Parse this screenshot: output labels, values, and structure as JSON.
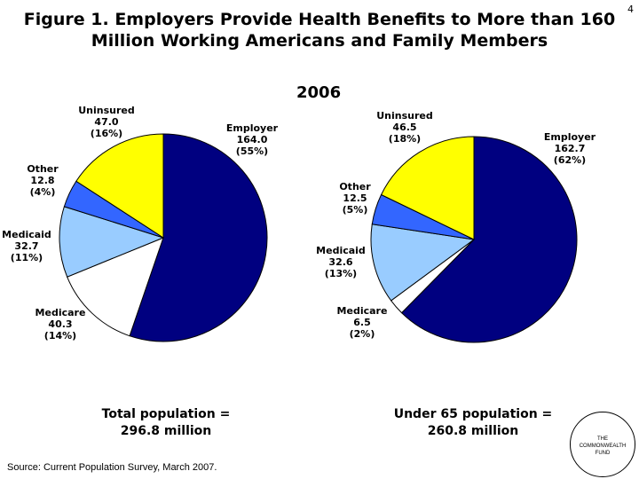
{
  "title": {
    "line1": "Figure 1. Employers Provide Health Benefits to More than 160",
    "line2": "Million Working Americans and Family Members"
  },
  "page_number": "4",
  "year_label": "2006",
  "chart_data": [
    {
      "type": "pie",
      "title": "2006",
      "caption_line1": "Total population =",
      "caption_line2": "296.8 million",
      "slices": [
        {
          "name": "Employer",
          "value": 164.0,
          "value_label": "164.0",
          "pct": "(55%)",
          "color": "#000080"
        },
        {
          "name": "Medicare",
          "value": 40.3,
          "value_label": "40.3",
          "pct": "(14%)",
          "color": "#ffffff"
        },
        {
          "name": "Medicaid",
          "value": 32.7,
          "value_label": "32.7",
          "pct": "(11%)",
          "color": "#99ccff"
        },
        {
          "name": "Other",
          "value": 12.8,
          "value_label": "12.8",
          "pct": "(4%)",
          "color": "#3366ff"
        },
        {
          "name": "Uninsured",
          "value": 47.0,
          "value_label": "47.0",
          "pct": "(16%)",
          "color": "#ffff00"
        }
      ]
    },
    {
      "type": "pie",
      "title": "2006",
      "caption_line1": "Under 65 population =",
      "caption_line2": "260.8 million",
      "slices": [
        {
          "name": "Employer",
          "value": 162.7,
          "value_label": "162.7",
          "pct": "(62%)",
          "color": "#000080"
        },
        {
          "name": "Medicare",
          "value": 6.5,
          "value_label": "6.5",
          "pct": "(2%)",
          "color": "#ffffff"
        },
        {
          "name": "Medicaid",
          "value": 32.6,
          "value_label": "32.6",
          "pct": "(13%)",
          "color": "#99ccff"
        },
        {
          "name": "Other",
          "value": 12.5,
          "value_label": "12.5",
          "pct": "(5%)",
          "color": "#3366ff"
        },
        {
          "name": "Uninsured",
          "value": 46.5,
          "value_label": "46.5",
          "pct": "(18%)",
          "color": "#ffff00"
        }
      ]
    }
  ],
  "source": "Source: Current Population Survey, March 2007.",
  "logo": {
    "line1": "THE",
    "line2": "COMMONWEALTH",
    "line3": "FUND"
  }
}
